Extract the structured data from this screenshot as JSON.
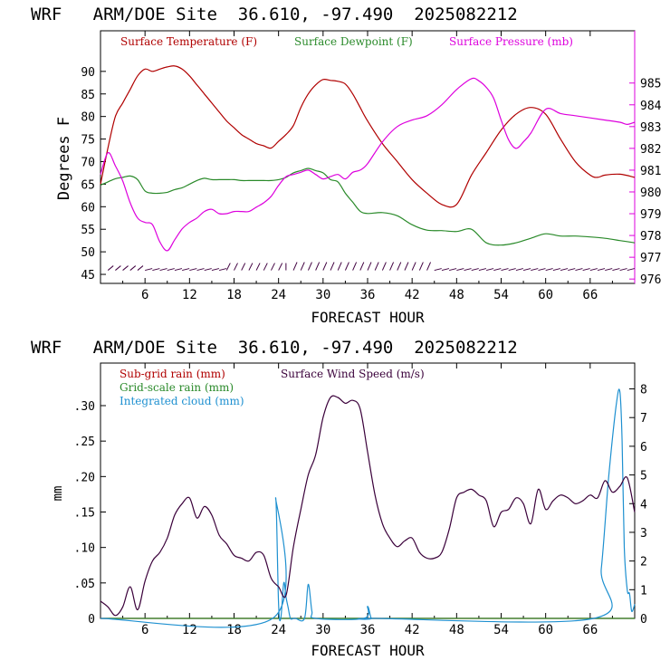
{
  "colors": {
    "temperature": "#b00000",
    "dewpoint": "#2a8a2a",
    "pressure": "#dd00dd",
    "wind_barb": "#400040",
    "subgrid_rain": "#b00000",
    "grid_rain": "#2a8a2a",
    "cloud": "#1e90d0",
    "wind_speed": "#3a003a",
    "axis": "#000000"
  },
  "chart_data": [
    {
      "type": "line",
      "title": "WRF   ARM/DOE Site  36.610, -97.490  2025082212",
      "xlabel": "FORECAST HOUR",
      "ylabel": "Degrees F",
      "x_ticks": [
        "6",
        "12",
        "18",
        "24",
        "30",
        "36",
        "42",
        "48",
        "54",
        "60",
        "66"
      ],
      "xlim": [
        0,
        72
      ],
      "ylim": [
        43,
        99
      ],
      "y_ticks": [
        "45",
        "50",
        "55",
        "60",
        "65",
        "70",
        "75",
        "80",
        "85",
        "90"
      ],
      "y2lim": [
        975.8,
        987.4
      ],
      "y2_ticks": [
        "976",
        "977",
        "978",
        "979",
        "980",
        "981",
        "982",
        "983",
        "984",
        "985"
      ],
      "grid": false,
      "legend_position": "top",
      "series": [
        {
          "name": "Surface Temperature (F)",
          "axis": "left",
          "x": [
            0,
            1,
            2,
            3,
            4,
            5,
            6,
            7,
            8,
            9,
            10,
            11,
            12,
            13,
            14,
            15,
            16,
            17,
            18,
            19,
            20,
            21,
            22,
            23,
            24,
            25,
            26,
            27,
            28,
            29,
            30,
            31,
            32,
            33,
            34,
            35,
            36,
            38,
            40,
            42,
            44,
            46,
            48,
            50,
            52,
            54,
            56,
            58,
            60,
            62,
            64,
            66,
            67,
            68,
            70,
            72
          ],
          "values": [
            65,
            73,
            80,
            83,
            86,
            89,
            90.5,
            90,
            90.5,
            91,
            91.2,
            90.5,
            89,
            87,
            85,
            83,
            81,
            79,
            77.5,
            76,
            75,
            74,
            73.5,
            73,
            74.5,
            76,
            78,
            82,
            85,
            87,
            88.2,
            88,
            87.8,
            87.2,
            85,
            82,
            79,
            74,
            70,
            66,
            63,
            60.5,
            60.5,
            67,
            72,
            77,
            80.5,
            82,
            80.5,
            75,
            70,
            67,
            66.5,
            67,
            67.2,
            66.5
          ]
        },
        {
          "name": "Surface Dewpoint (F)",
          "axis": "left",
          "x": [
            0,
            1,
            2,
            3,
            4,
            5,
            6,
            7,
            8,
            9,
            10,
            11,
            12,
            13,
            14,
            15,
            16,
            17,
            18,
            19,
            20,
            21,
            22,
            23,
            24,
            25,
            26,
            27,
            28,
            29,
            30,
            31,
            32,
            33,
            34,
            35,
            36,
            38,
            40,
            42,
            44,
            46,
            48,
            50,
            52,
            54,
            56,
            58,
            60,
            62,
            64,
            66,
            68,
            70,
            72
          ],
          "values": [
            64.8,
            65.5,
            66.2,
            66.5,
            66.8,
            66,
            63.5,
            63,
            63,
            63.2,
            63.8,
            64.2,
            65,
            65.8,
            66.3,
            66,
            66,
            66,
            66,
            65.8,
            65.8,
            65.8,
            65.8,
            65.8,
            66,
            66.5,
            67.5,
            68,
            68.5,
            68,
            67.5,
            66,
            65.5,
            63,
            61,
            59,
            58.5,
            58.7,
            58,
            56,
            54.8,
            54.7,
            54.5,
            55,
            52,
            51.5,
            52,
            53,
            54,
            53.5,
            53.5,
            53.3,
            53,
            52.5,
            52
          ]
        },
        {
          "name": "Surface Pressure (mb)",
          "axis": "right",
          "x": [
            0,
            1,
            2,
            3,
            4,
            5,
            6,
            7,
            8,
            9,
            10,
            11,
            12,
            13,
            14,
            15,
            16,
            17,
            18,
            19,
            20,
            21,
            22,
            23,
            24,
            25,
            26,
            27,
            28,
            29,
            30,
            31,
            32,
            33,
            34,
            35,
            36,
            38,
            40,
            42,
            44,
            46,
            48,
            50,
            51,
            52,
            53,
            54,
            55,
            56,
            57,
            58,
            60,
            62,
            64,
            66,
            68,
            70,
            71,
            72
          ],
          "values": [
            980.8,
            981.8,
            981.2,
            980.5,
            979.5,
            978.8,
            978.6,
            978.5,
            977.7,
            977.3,
            977.8,
            978.3,
            978.6,
            978.8,
            979.1,
            979.2,
            979,
            979,
            979.1,
            979.1,
            979.1,
            979.3,
            979.5,
            979.8,
            980.3,
            980.7,
            980.8,
            980.9,
            981,
            980.8,
            980.6,
            980.7,
            980.8,
            980.6,
            980.9,
            981,
            981.3,
            982.3,
            983,
            983.3,
            983.5,
            984,
            984.7,
            985.2,
            985.1,
            984.8,
            984.3,
            983.3,
            982.4,
            982,
            982.3,
            982.7,
            983.8,
            983.6,
            983.5,
            983.4,
            983.3,
            983.2,
            983.1,
            983.2
          ]
        }
      ]
    },
    {
      "type": "line",
      "title": "WRF   ARM/DOE Site  36.610, -97.490  2025082212",
      "xlabel": "FORECAST HOUR",
      "ylabel": "mm",
      "x_ticks": [
        "6",
        "12",
        "18",
        "24",
        "30",
        "36",
        "42",
        "48",
        "54",
        "60",
        "66"
      ],
      "xlim": [
        0,
        72
      ],
      "ylim": [
        0,
        0.36
      ],
      "y_ticks": [
        "0",
        ".05",
        ".10",
        ".15",
        ".20",
        ".25",
        ".30"
      ],
      "y2lim": [
        0,
        8.9
      ],
      "y2_ticks": [
        "0",
        "1",
        "2",
        "3",
        "4",
        "5",
        "6",
        "7",
        "8"
      ],
      "grid": false,
      "legend_position": "top-left",
      "series": [
        {
          "name": "Sub-grid rain (mm)",
          "axis": "left",
          "x": [
            0,
            72
          ],
          "values": [
            0,
            0
          ]
        },
        {
          "name": "Grid-scale rain (mm)",
          "axis": "left",
          "x": [
            0,
            72
          ],
          "values": [
            0,
            0
          ]
        },
        {
          "name": "Integrated cloud (mm)",
          "axis": "left",
          "x": [
            0,
            23.2,
            23.6,
            24,
            24.3,
            24.7,
            25,
            25.3,
            25.6,
            26,
            26.3,
            27.5,
            28,
            28.5,
            29,
            35.5,
            36,
            36.5,
            37,
            66.5,
            67.5,
            68.5,
            69.5,
            70,
            70.3,
            70.6,
            71,
            71.3,
            71.6,
            72
          ],
          "values": [
            0,
            0,
            0.17,
            0.02,
            0,
            0.05,
            0.03,
            0.015,
            0,
            0,
            0,
            0,
            0.048,
            0.01,
            0,
            0,
            0.017,
            0,
            0,
            0,
            0.07,
            0.2,
            0.3,
            0.32,
            0.25,
            0.1,
            0.04,
            0.035,
            0.01,
            0.02
          ]
        },
        {
          "name": "Surface Wind Speed (m/s)",
          "axis": "right",
          "x": [
            0,
            1,
            2,
            3,
            4,
            5,
            6,
            7,
            8,
            9,
            10,
            11,
            12,
            13,
            14,
            15,
            16,
            17,
            18,
            19,
            20,
            21,
            22,
            23,
            24,
            25,
            26,
            27,
            28,
            29,
            30,
            31,
            32,
            33,
            34,
            35,
            36,
            37,
            38,
            39,
            40,
            41,
            42,
            43,
            44,
            45,
            46,
            47,
            48,
            49,
            50,
            51,
            52,
            53,
            54,
            55,
            56,
            57,
            58,
            59,
            60,
            61,
            62,
            63,
            64,
            65,
            66,
            67,
            68,
            69,
            70,
            71,
            72
          ],
          "values": [
            0.6,
            0.4,
            0.1,
            0.4,
            1.1,
            0.3,
            1.3,
            2.0,
            2.3,
            2.8,
            3.6,
            4.0,
            4.2,
            3.5,
            3.9,
            3.6,
            2.9,
            2.6,
            2.2,
            2.1,
            2.0,
            2.3,
            2.2,
            1.4,
            1.1,
            0.8,
            2.5,
            3.8,
            5.0,
            5.7,
            7.0,
            7.7,
            7.7,
            7.5,
            7.6,
            7.3,
            5.8,
            4.3,
            3.3,
            2.8,
            2.5,
            2.7,
            2.8,
            2.3,
            2.1,
            2.1,
            2.3,
            3.1,
            4.2,
            4.4,
            4.5,
            4.3,
            4.1,
            3.2,
            3.7,
            3.8,
            4.2,
            4.0,
            3.3,
            4.5,
            3.8,
            4.1,
            4.3,
            4.2,
            4.0,
            4.1,
            4.3,
            4.2,
            4.8,
            4.4,
            4.6,
            4.9,
            3.7
          ]
        }
      ],
      "axis_right_label": ""
    }
  ]
}
